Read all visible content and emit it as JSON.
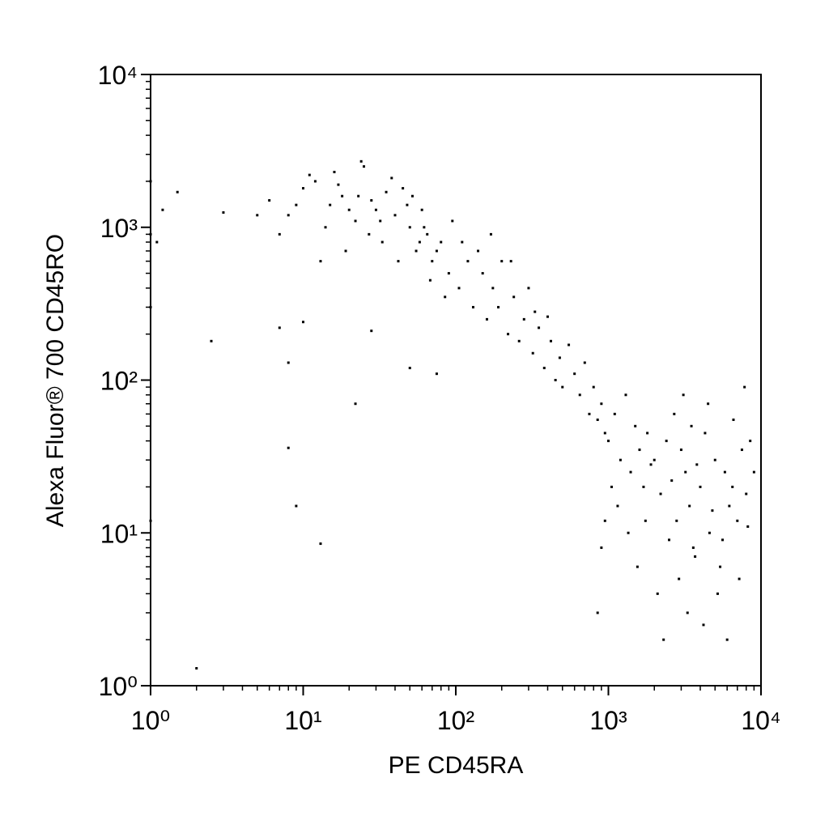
{
  "chart_data": {
    "type": "scatter",
    "log_x": true,
    "log_y": true,
    "x_label": "PE CD45RA",
    "y_label": "Alexa Fluor® 700 CD45RO",
    "color": "#000000",
    "xlim": [
      1,
      10000
    ],
    "ylim": [
      1,
      10000
    ],
    "xticks": [
      {
        "value": 1,
        "label": "10⁰"
      },
      {
        "value": 10,
        "label": "10¹"
      },
      {
        "value": 100,
        "label": "10²"
      },
      {
        "value": 1000,
        "label": "10³"
      },
      {
        "value": 10000,
        "label": "10⁴"
      }
    ],
    "yticks": [
      {
        "value": 1,
        "label": "10⁰"
      },
      {
        "value": 10,
        "label": "10¹"
      },
      {
        "value": 100,
        "label": "10²"
      },
      {
        "value": 1000,
        "label": "10³"
      },
      {
        "value": 10000,
        "label": "10⁴"
      }
    ],
    "xminorticks": [
      2,
      3,
      4,
      5,
      6,
      7,
      8,
      9,
      20,
      30,
      40,
      50,
      60,
      70,
      80,
      90,
      200,
      300,
      400,
      500,
      600,
      700,
      800,
      900,
      2000,
      3000,
      4000,
      5000,
      6000,
      7000,
      8000,
      9000
    ],
    "yminorticks": [
      2,
      3,
      4,
      5,
      6,
      7,
      8,
      9,
      20,
      30,
      40,
      50,
      60,
      70,
      80,
      90,
      200,
      300,
      400,
      500,
      600,
      700,
      800,
      900,
      2000,
      3000,
      4000,
      5000,
      6000,
      7000,
      8000,
      9000
    ],
    "x": [
      6,
      8,
      10,
      12,
      15,
      18,
      22,
      25,
      30,
      35,
      7,
      9,
      11,
      14,
      17,
      20,
      24,
      28,
      33,
      40,
      45,
      50,
      55,
      60,
      65,
      70,
      80,
      90,
      5,
      13,
      16,
      19,
      23,
      27,
      32,
      38,
      42,
      48,
      52,
      58,
      62,
      68,
      75,
      85,
      95,
      105,
      110,
      120,
      130,
      140,
      150,
      160,
      175,
      190,
      200,
      220,
      240,
      260,
      280,
      300,
      320,
      350,
      380,
      400,
      420,
      450,
      480,
      500,
      550,
      600,
      650,
      700,
      750,
      800,
      850,
      900,
      950,
      170,
      230,
      330,
      1000,
      1100,
      1200,
      1300,
      1400,
      1500,
      1600,
      1700,
      1800,
      1900,
      2000,
      2200,
      2400,
      2600,
      2800,
      3000,
      3200,
      3400,
      3600,
      3800,
      4000,
      4300,
      4600,
      5000,
      5400,
      5800,
      6200,
      6600,
      7000,
      7500,
      8000,
      8500,
      9000,
      1150,
      1350,
      1550,
      1750,
      2100,
      2500,
      2900,
      3300,
      3700,
      4200,
      4800,
      5200,
      5600,
      6000,
      6500,
      7200,
      8200,
      850,
      900,
      950,
      1050,
      2300,
      2700,
      3100,
      3500,
      4500,
      7800,
      1,
      1,
      1,
      1,
      1.1,
      1.2,
      1.5,
      2,
      2.5,
      3,
      7,
      8,
      8,
      9,
      13,
      22,
      28,
      50,
      75,
      10
    ],
    "values": [
      1500,
      1200,
      1800,
      2000,
      1400,
      1600,
      1100,
      2500,
      1300,
      1700,
      900,
      1400,
      2200,
      1000,
      1900,
      1300,
      2700,
      1500,
      800,
      1200,
      1800,
      1000,
      700,
      1300,
      900,
      600,
      800,
      500,
      1200,
      600,
      2300,
      700,
      1600,
      900,
      1100,
      2100,
      600,
      1400,
      1600,
      800,
      1000,
      450,
      700,
      350,
      1100,
      400,
      800,
      600,
      300,
      700,
      500,
      250,
      400,
      300,
      600,
      200,
      350,
      180,
      250,
      400,
      150,
      220,
      120,
      260,
      180,
      100,
      140,
      90,
      170,
      110,
      80,
      130,
      60,
      90,
      55,
      70,
      45,
      900,
      600,
      280,
      40,
      60,
      30,
      80,
      25,
      50,
      35,
      20,
      45,
      28,
      30,
      18,
      40,
      22,
      12,
      35,
      25,
      15,
      8,
      28,
      20,
      45,
      10,
      30,
      6,
      25,
      15,
      55,
      12,
      35,
      18,
      40,
      25,
      15,
      10,
      6,
      12,
      4,
      9,
      5,
      3,
      7,
      2.5,
      14,
      4,
      9,
      2,
      20,
      5,
      11,
      3,
      8,
      12,
      20,
      2,
      60,
      80,
      50,
      70,
      90,
      2000,
      900,
      300,
      12,
      800,
      1300,
      1700,
      1.3,
      180,
      1250,
      220,
      130,
      36,
      15,
      8.5,
      70,
      210,
      120,
      110,
      240
    ]
  }
}
